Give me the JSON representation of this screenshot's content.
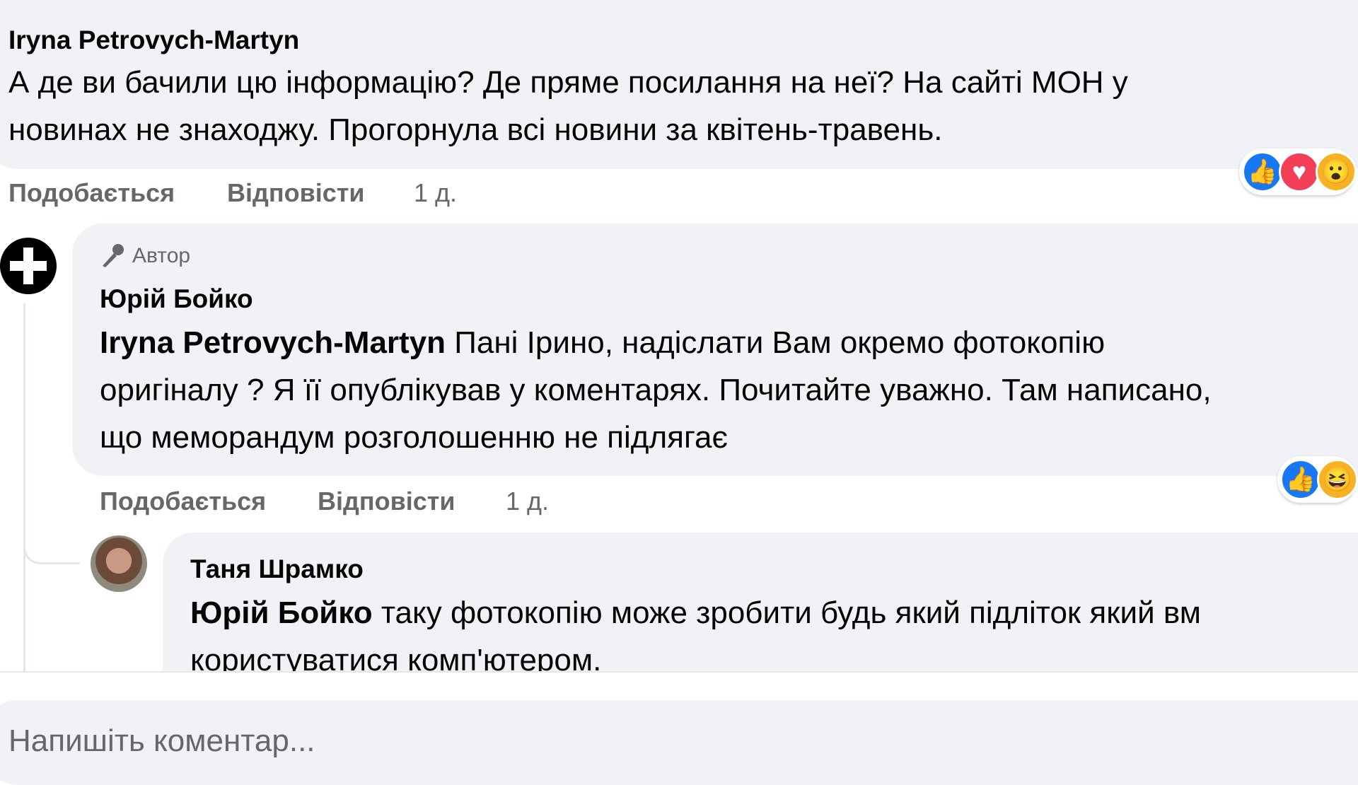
{
  "comments": [
    {
      "author": "Iryna Petrovych-Martyn",
      "text_lines": [
        "А де ви бачили цю інформацію? Де пряме посилання на неї? На сайті МОН у",
        "новинах не знаходжу. Прогорнула всі новини за квітень-травень."
      ],
      "like_label": "Подобається",
      "reply_label": "Відповісти",
      "time": "1 д.",
      "reactions": [
        "like",
        "love",
        "wow"
      ]
    },
    {
      "badge": "Автор",
      "author": "Юрій Бойко",
      "mention": "Iryna Petrovych-Martyn",
      "text_lines": [
        " Пані Ірино, надіслати Вам окремо фотокопію",
        "оригіналу ? Я її опублікував у коментарях. Почитайте уважно. Там написано,",
        "що меморандум розголошенню не підлягає"
      ],
      "like_label": "Подобається",
      "reply_label": "Відповісти",
      "time": "1 д.",
      "reactions": [
        "like",
        "haha"
      ]
    },
    {
      "author": "Таня Шрамко",
      "mention": "Юрій Бойко",
      "text_lines": [
        " таку фотокопію може зробити будь який підліток який вм",
        "користуватися комп'ютером."
      ]
    }
  ],
  "composer": {
    "placeholder": "Напишіть коментар..."
  }
}
